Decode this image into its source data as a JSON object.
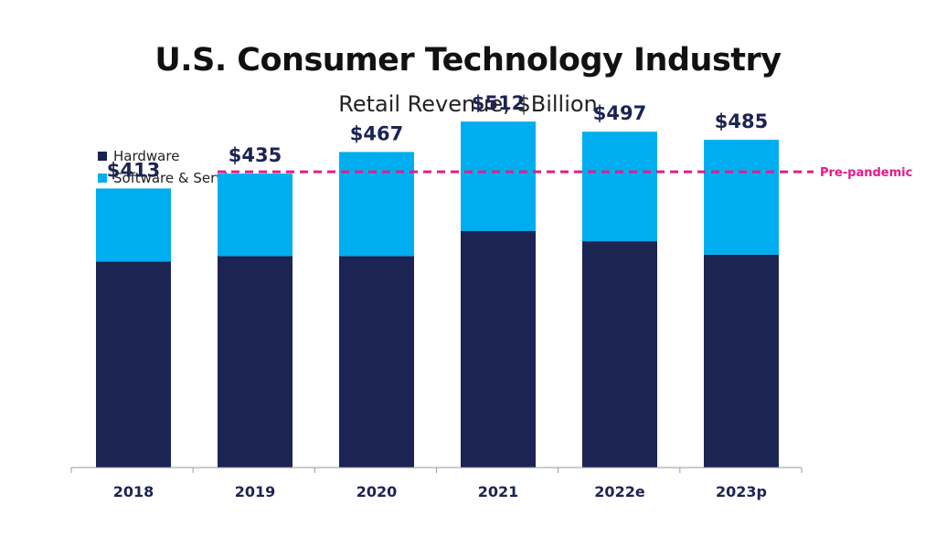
{
  "chart_data": {
    "type": "bar",
    "stacked": true,
    "title": "U.S. Consumer Technology Industry",
    "subtitle": "Retail Revenue, $Billion",
    "categories": [
      "2018",
      "2019",
      "2020",
      "2021",
      "2022e",
      "2023p"
    ],
    "series": [
      {
        "name": "Hardware",
        "values": [
          305,
          313,
          313,
          350,
          335,
          315
        ]
      },
      {
        "name": "Software & Services",
        "values": [
          108,
          122,
          154,
          162,
          162,
          170
        ]
      }
    ],
    "totals": [
      413,
      435,
      467,
      512,
      497,
      485
    ],
    "total_labels": [
      "$413",
      "$435",
      "$467",
      "$512",
      "$497",
      "$485"
    ],
    "reference_line": {
      "value": 435,
      "label": "Pre-pandemic"
    },
    "ylim": [
      0,
      600
    ],
    "legend_position": "top-left",
    "colors": {
      "Hardware": "#1c2454",
      "Software & Services": "#00aeef",
      "reference": "#e6198c",
      "axis": "#999999",
      "text": "#1c2454"
    }
  }
}
